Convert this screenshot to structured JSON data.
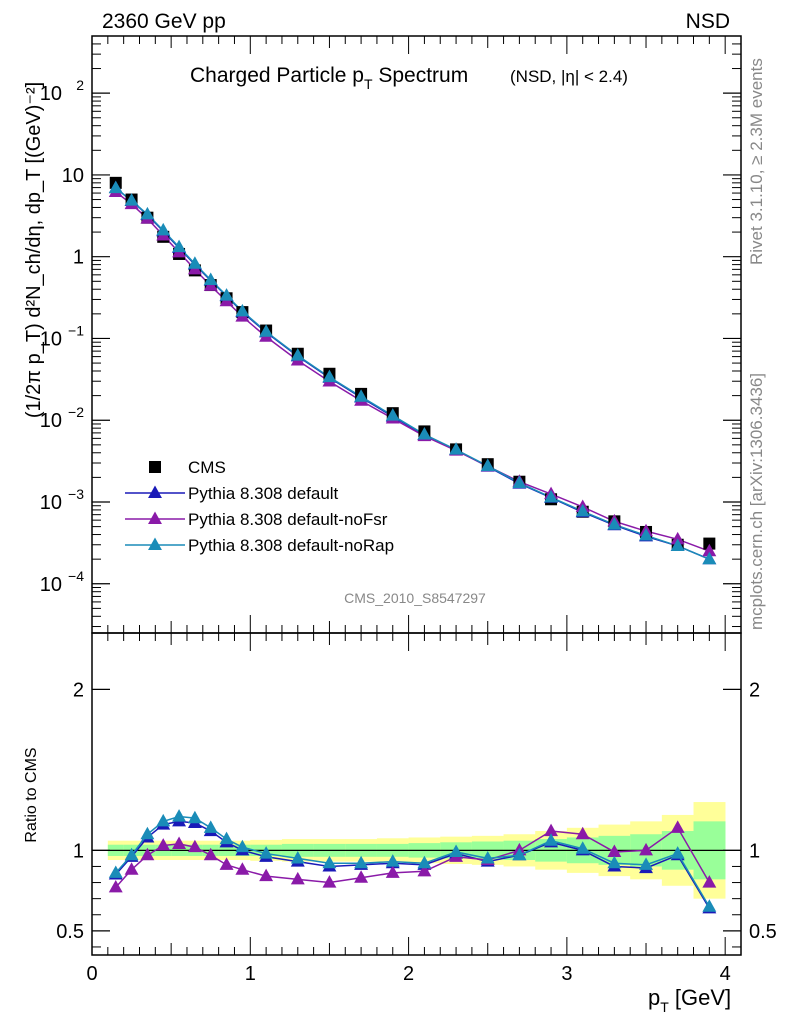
{
  "header": {
    "left": "2360 GeV pp",
    "right": "NSD"
  },
  "side_labels": {
    "rivet": "Rivet 3.1.10, ≥ 2.3M events",
    "mcplots": "mcplots.cern.ch [arXiv:1306.3436]"
  },
  "watermark": "CMS_2010_S8547297",
  "chart_data": [
    {
      "type": "scatter",
      "title": "Charged Particle p_T Spectrum",
      "title_main": "Charged Particle p",
      "title_sub": "T",
      "title_tail": " Spectrum",
      "title_extra": "(NSD, |η| < 2.4)",
      "ylabel": "(1/2π p_T) d²N_ch/dη, dp_T [(GeV)⁻²]",
      "yscale": "log",
      "ylim": [
        2.5e-05,
        500
      ],
      "xlim": [
        0,
        4.1
      ],
      "y_ticks": [
        {
          "v": 100,
          "base": "10",
          "exp": "2"
        },
        {
          "v": 10,
          "base": "10",
          "exp": ""
        },
        {
          "v": 1,
          "base": "1",
          "exp": ""
        },
        {
          "v": 0.1,
          "base": "10",
          "exp": "−1"
        },
        {
          "v": 0.01,
          "base": "10",
          "exp": "−2"
        },
        {
          "v": 0.001,
          "base": "10",
          "exp": "−3"
        },
        {
          "v": 0.0001,
          "base": "10",
          "exp": "−4"
        }
      ],
      "legend_position": "lower-left",
      "x": [
        0.15,
        0.25,
        0.35,
        0.45,
        0.55,
        0.65,
        0.75,
        0.85,
        0.95,
        1.1,
        1.3,
        1.5,
        1.7,
        1.9,
        2.1,
        2.3,
        2.5,
        2.7,
        2.9,
        3.1,
        3.3,
        3.5,
        3.7,
        3.9
      ],
      "series": [
        {
          "name": "CMS",
          "marker": "square",
          "color": "#000000",
          "values": [
            8.0,
            5.0,
            3.0,
            1.75,
            1.08,
            0.68,
            0.45,
            0.31,
            0.21,
            0.125,
            0.065,
            0.037,
            0.021,
            0.0122,
            0.0073,
            0.0044,
            0.0029,
            0.00177,
            0.00108,
            0.00076,
            0.00058,
            0.00043,
            0.0003,
            0.00031
          ]
        },
        {
          "name": "Pythia 8.308 default",
          "marker": "triangle",
          "color": "#1a1ab8",
          "values": [
            6.9,
            4.8,
            3.25,
            2.05,
            1.28,
            0.8,
            0.51,
            0.33,
            0.21,
            0.119,
            0.0605,
            0.0331,
            0.019,
            0.0111,
            0.0066,
            0.00433,
            0.00271,
            0.00168,
            0.00113,
            0.00075,
            0.00052,
            0.00038,
            0.00029,
            0.0002
          ]
        },
        {
          "name": "Pythia 8.308 default-noFsr",
          "marker": "triangle",
          "color": "#8a1aa8",
          "values": [
            6.2,
            4.4,
            2.92,
            1.82,
            1.13,
            0.7,
            0.44,
            0.285,
            0.185,
            0.105,
            0.0538,
            0.0298,
            0.0173,
            0.0105,
            0.0064,
            0.00425,
            0.00274,
            0.00177,
            0.00125,
            0.00087,
            0.00058,
            0.00044,
            0.00035,
            0.00025
          ]
        },
        {
          "name": "Pythia 8.308 default-noRap",
          "marker": "triangle",
          "color": "#1a8cb8",
          "values": [
            6.9,
            4.85,
            3.3,
            2.1,
            1.31,
            0.82,
            0.52,
            0.335,
            0.215,
            0.121,
            0.0617,
            0.0337,
            0.0194,
            0.0114,
            0.0067,
            0.00437,
            0.00276,
            0.00171,
            0.00114,
            0.00077,
            0.00053,
            0.00039,
            0.00029,
            0.0002
          ]
        }
      ]
    },
    {
      "type": "line",
      "ylabel": "Ratio to CMS",
      "ylim": [
        0.35,
        2.35
      ],
      "xlim": [
        0,
        4.1
      ],
      "xlabel": "p_T [GeV]",
      "xlabel_main": "p",
      "xlabel_sub": "T",
      "xlabel_tail": " [GeV]",
      "x_ticks": [
        "0",
        "1",
        "2",
        "3",
        "4"
      ],
      "y_ticks": [
        "0.5",
        "1",
        "2"
      ],
      "x": [
        0.15,
        0.25,
        0.35,
        0.45,
        0.55,
        0.65,
        0.75,
        0.85,
        0.95,
        1.1,
        1.3,
        1.5,
        1.7,
        1.9,
        2.1,
        2.3,
        2.5,
        2.7,
        2.9,
        3.1,
        3.3,
        3.5,
        3.7,
        3.9
      ],
      "bin_edges": [
        0.1,
        0.2,
        0.3,
        0.4,
        0.5,
        0.6,
        0.7,
        0.8,
        0.9,
        1.0,
        1.2,
        1.4,
        1.6,
        1.8,
        2.0,
        2.2,
        2.4,
        2.6,
        2.8,
        3.0,
        3.2,
        3.4,
        3.6,
        3.8,
        4.0
      ],
      "band_inner": [
        0.035,
        0.035,
        0.035,
        0.035,
        0.035,
        0.035,
        0.035,
        0.035,
        0.035,
        0.035,
        0.04,
        0.04,
        0.04,
        0.04,
        0.045,
        0.05,
        0.055,
        0.06,
        0.07,
        0.08,
        0.09,
        0.1,
        0.12,
        0.18
      ],
      "band_outer": [
        0.06,
        0.06,
        0.06,
        0.06,
        0.06,
        0.06,
        0.06,
        0.06,
        0.06,
        0.065,
        0.07,
        0.07,
        0.07,
        0.075,
        0.08,
        0.085,
        0.09,
        0.1,
        0.12,
        0.14,
        0.16,
        0.18,
        0.22,
        0.3
      ],
      "series": [
        {
          "name": "Pythia 8.308 default",
          "color": "#1a1ab8",
          "values": [
            0.85,
            0.96,
            1.08,
            1.16,
            1.18,
            1.17,
            1.12,
            1.05,
            1.0,
            0.96,
            0.93,
            0.9,
            0.91,
            0.92,
            0.91,
            0.98,
            0.93,
            0.97,
            1.05,
            1.0,
            0.9,
            0.89,
            0.97,
            0.64
          ]
        },
        {
          "name": "Pythia 8.308 default-noFsr",
          "color": "#8a1aa8",
          "values": [
            0.77,
            0.88,
            0.97,
            1.03,
            1.04,
            1.02,
            0.97,
            0.91,
            0.88,
            0.84,
            0.82,
            0.8,
            0.83,
            0.86,
            0.87,
            0.96,
            0.94,
            1.0,
            1.12,
            1.1,
            0.99,
            1.0,
            1.14,
            0.8
          ]
        },
        {
          "name": "Pythia 8.308 default-noRap",
          "color": "#1a8cb8",
          "values": [
            0.86,
            0.97,
            1.1,
            1.18,
            1.21,
            1.2,
            1.14,
            1.07,
            1.02,
            0.98,
            0.95,
            0.92,
            0.92,
            0.93,
            0.92,
            0.99,
            0.95,
            0.97,
            1.06,
            1.01,
            0.92,
            0.91,
            0.98,
            0.65
          ]
        }
      ]
    }
  ],
  "colors": {
    "band_outer": "#ffff99",
    "band_inner": "#99ff99",
    "grey_text": "#888888"
  }
}
